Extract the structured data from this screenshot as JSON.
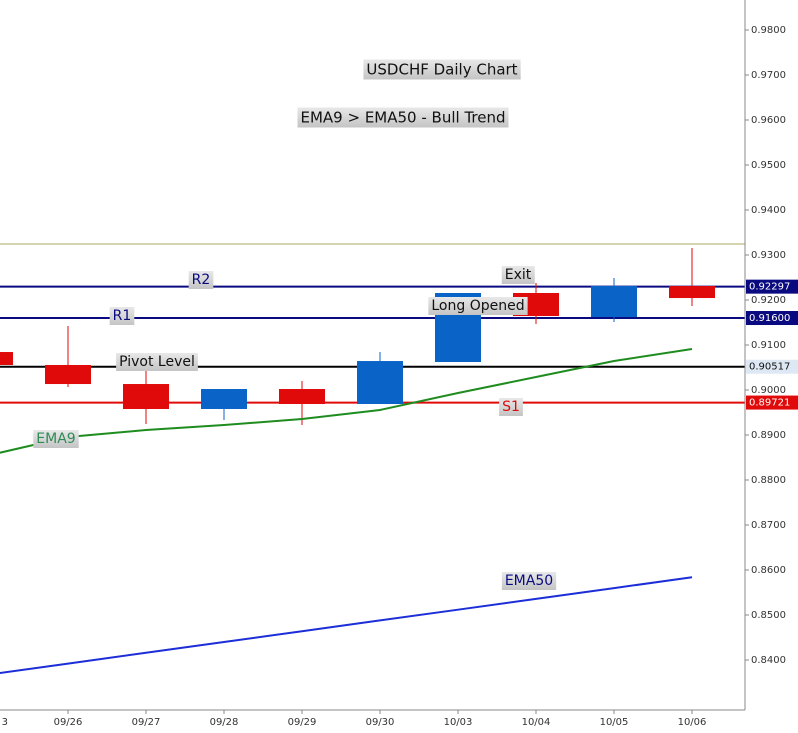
{
  "chart_data": {
    "type": "candlestick",
    "title": "USDCHF Daily Chart",
    "subtitle": "EMA9 > EMA50 - Bull Trend",
    "categories": [
      "3",
      "09/26",
      "09/27",
      "09/28",
      "09/29",
      "09/30",
      "10/03",
      "10/04",
      "10/05",
      "10/06"
    ],
    "open": [
      0.90844,
      0.90556,
      0.90133,
      0.89578,
      0.90022,
      0.89689,
      0.90622,
      0.92156,
      0.91622,
      0.92311
    ],
    "high": [
      0.90844,
      0.91422,
      0.90422,
      0.90022,
      0.902,
      0.90844,
      0.92156,
      0.92378,
      0.92489,
      0.93156
    ],
    "low": [
      0.90556,
      0.90067,
      0.89244,
      0.89333,
      0.89222,
      0.89689,
      0.90622,
      0.91467,
      0.91511,
      0.91867
    ],
    "close": [
      0.90556,
      0.90133,
      0.89578,
      0.90022,
      0.89689,
      0.90644,
      0.92156,
      0.91644,
      0.92311,
      0.92044
    ],
    "up_color": "#0a64c8",
    "down_color": "#e00a0a",
    "series": [
      {
        "name": "EMA9",
        "color": "#1e8c1e",
        "values": [
          0.88556,
          0.88956,
          0.89111,
          0.89222,
          0.89356,
          0.89556,
          0.89933,
          0.90289,
          0.90644,
          0.90911
        ]
      },
      {
        "name": "EMA50",
        "color": "#1c2ed8",
        "values": [
          0.8368,
          0.8392,
          0.84162,
          0.844,
          0.8464,
          0.8488,
          0.85118,
          0.85358,
          0.85598,
          0.85838
        ]
      }
    ],
    "levels": [
      {
        "name": "R2",
        "value": 0.92297,
        "value_label": "0.92297",
        "color": "#0a0a80"
      },
      {
        "name": "R1",
        "value": 0.916,
        "value_label": "0.91600",
        "color": "#0a0a80"
      },
      {
        "name": "Pivot Level",
        "value": 0.90517,
        "value_label": "0.90517",
        "color": "#000000"
      },
      {
        "name": "S1",
        "value": 0.89721,
        "value_label": "0.89721",
        "color": "#e00a0a"
      },
      {
        "value": 0.93244,
        "color": "#a8a860"
      }
    ],
    "annotations": [
      "Exit",
      "Long Opened"
    ],
    "ylim": [
      0.82889,
      0.98667
    ],
    "yticks": [
      {
        "value": 0.84,
        "label": "0.8400"
      },
      {
        "value": 0.85,
        "label": "0.8500"
      },
      {
        "value": 0.86,
        "label": "0.8600"
      },
      {
        "value": 0.87,
        "label": "0.8700"
      },
      {
        "value": 0.88,
        "label": "0.8800"
      },
      {
        "value": 0.89,
        "label": "0.8900"
      },
      {
        "value": 0.9,
        "label": "0.9000"
      },
      {
        "value": 0.91,
        "label": "0.9100"
      },
      {
        "value": 0.92,
        "label": "0.9200"
      },
      {
        "value": 0.93,
        "label": "0.9300"
      },
      {
        "value": 0.94,
        "label": "0.9400"
      },
      {
        "value": 0.95,
        "label": "0.9500"
      },
      {
        "value": 0.96,
        "label": "0.9600"
      },
      {
        "value": 0.97,
        "label": "0.9700"
      },
      {
        "value": 0.98,
        "label": "0.9800"
      }
    ]
  }
}
